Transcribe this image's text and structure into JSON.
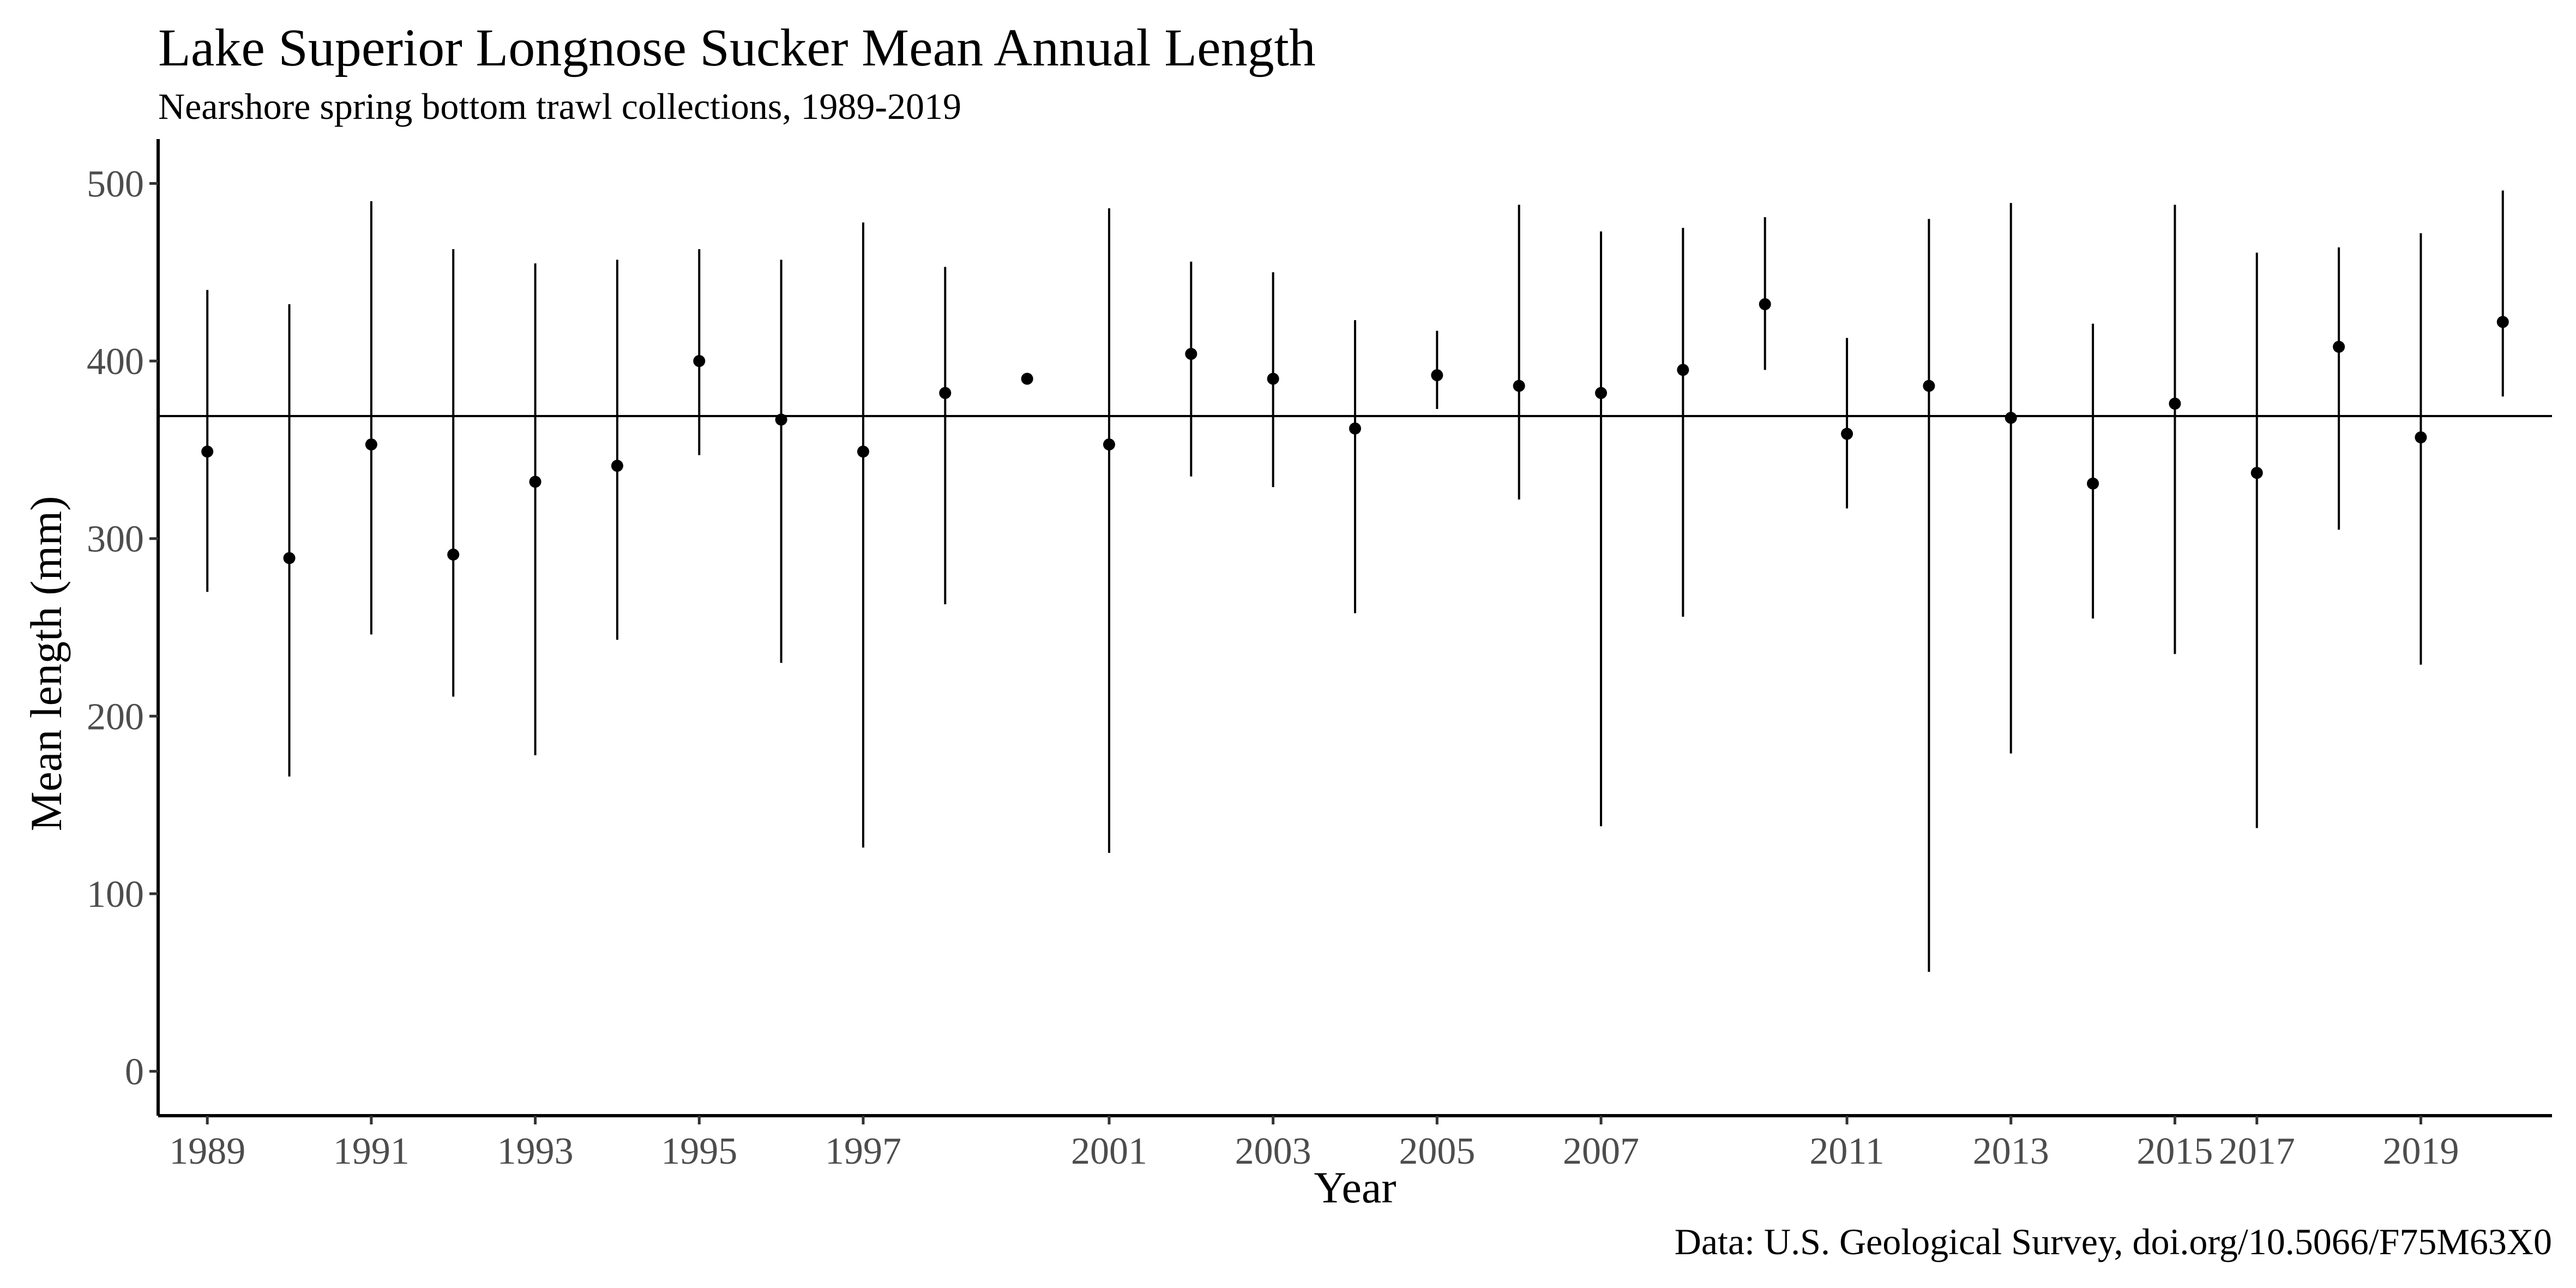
{
  "chart_data": {
    "type": "scatter",
    "title": "Lake Superior Longnose Sucker Mean Annual Length",
    "subtitle": "Nearshore spring bottom trawl collections, 1989-2019",
    "xlabel": "Year",
    "ylabel": "Mean length (mm)",
    "caption": "Data: U.S. Geological Survey, doi.org/10.5066/F75M63X0",
    "x_tick_labels": [
      "1989",
      "1991",
      "1993",
      "1995",
      "1997",
      "2001",
      "2003",
      "2005",
      "2007",
      "2011",
      "2013",
      "2015",
      "2017",
      "2019"
    ],
    "y_ticks": [
      0,
      100,
      200,
      300,
      400,
      500
    ],
    "y_tick_labels": [
      "0",
      "100",
      "200",
      "300",
      "400",
      "500"
    ],
    "ylim": [
      -25,
      525
    ],
    "reference_line": 369,
    "grid": false,
    "points": [
      {
        "x": 1,
        "y": 349,
        "low": 270,
        "high": 440
      },
      {
        "x": 2,
        "y": 289,
        "low": 166,
        "high": 432
      },
      {
        "x": 3,
        "y": 353,
        "low": 246,
        "high": 490
      },
      {
        "x": 4,
        "y": 291,
        "low": 211,
        "high": 463
      },
      {
        "x": 5,
        "y": 332,
        "low": 178,
        "high": 455
      },
      {
        "x": 6,
        "y": 341,
        "low": 243,
        "high": 457
      },
      {
        "x": 7,
        "y": 400,
        "low": 347,
        "high": 463
      },
      {
        "x": 8,
        "y": 367,
        "low": 230,
        "high": 457
      },
      {
        "x": 9,
        "y": 349,
        "low": 126,
        "high": 478
      },
      {
        "x": 10,
        "y": 382,
        "low": 263,
        "high": 453
      },
      {
        "x": 11,
        "y": 390,
        "low": 390,
        "high": 390
      },
      {
        "x": 12,
        "y": 353,
        "low": 123,
        "high": 486
      },
      {
        "x": 13,
        "y": 404,
        "low": 335,
        "high": 456
      },
      {
        "x": 14,
        "y": 390,
        "low": 329,
        "high": 450
      },
      {
        "x": 15,
        "y": 362,
        "low": 258,
        "high": 423
      },
      {
        "x": 16,
        "y": 392,
        "low": 373,
        "high": 417
      },
      {
        "x": 17,
        "y": 386,
        "low": 322,
        "high": 488
      },
      {
        "x": 18,
        "y": 382,
        "low": 138,
        "high": 473
      },
      {
        "x": 19,
        "y": 395,
        "low": 256,
        "high": 475
      },
      {
        "x": 20,
        "y": 432,
        "low": 395,
        "high": 481
      },
      {
        "x": 21,
        "y": 359,
        "low": 317,
        "high": 413
      },
      {
        "x": 22,
        "y": 386,
        "low": 56,
        "high": 480
      },
      {
        "x": 23,
        "y": 368,
        "low": 179,
        "high": 489
      },
      {
        "x": 24,
        "y": 331,
        "low": 255,
        "high": 421
      },
      {
        "x": 25,
        "y": 376,
        "low": 235,
        "high": 488
      },
      {
        "x": 26,
        "y": 337,
        "low": 137,
        "high": 461
      },
      {
        "x": 27,
        "y": 408,
        "low": 305,
        "high": 464
      },
      {
        "x": 28,
        "y": 357,
        "low": 229,
        "high": 472
      },
      {
        "x": 29,
        "y": 422,
        "low": 380,
        "high": 496
      }
    ],
    "x_tick_positions": [
      1,
      3,
      5,
      7,
      9,
      12,
      14,
      16,
      18,
      21,
      23,
      25,
      26,
      28
    ]
  }
}
